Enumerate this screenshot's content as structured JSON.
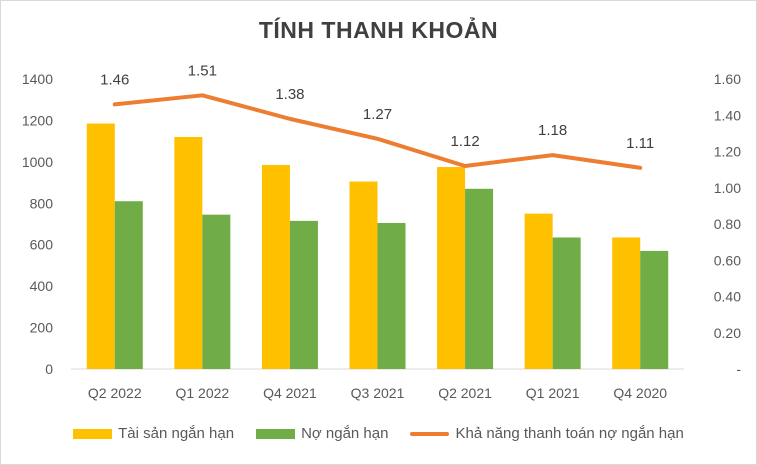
{
  "chart_data": {
    "type": "bar",
    "title": "TÍNH THANH KHOẢN",
    "categories": [
      "Q2 2022",
      "Q1 2022",
      "Q4 2021",
      "Q3 2021",
      "Q2 2021",
      "Q1 2021",
      "Q4 2020"
    ],
    "series": [
      {
        "name": "Tài sản ngắn hạn",
        "type": "bar",
        "axis": "left",
        "color": "#FFC000",
        "values": [
          1185,
          1120,
          985,
          905,
          975,
          750,
          635
        ]
      },
      {
        "name": "Nợ ngắn hạn",
        "type": "bar",
        "axis": "left",
        "color": "#70AD47",
        "values": [
          810,
          745,
          715,
          705,
          870,
          635,
          570
        ]
      },
      {
        "name": "Khả năng thanh toán nợ ngắn hạn",
        "type": "line",
        "axis": "right",
        "color": "#ED7D31",
        "values": [
          1.46,
          1.51,
          1.38,
          1.27,
          1.12,
          1.18,
          1.11
        ],
        "labels": [
          "1.46",
          "1.51",
          "1.38",
          "1.27",
          "1.12",
          "1.18",
          "1.11"
        ]
      }
    ],
    "y_left": {
      "ylim": [
        0,
        1400
      ],
      "ticks": [
        "0",
        "200",
        "400",
        "600",
        "800",
        "1000",
        "1200",
        "1400"
      ]
    },
    "y_right": {
      "ylim": [
        0,
        1.6
      ],
      "ticks": [
        "-",
        "0.20",
        "0.40",
        "0.60",
        "0.80",
        "1.00",
        "1.20",
        "1.40",
        "1.60"
      ]
    },
    "grid": false,
    "legend_position": "bottom"
  }
}
